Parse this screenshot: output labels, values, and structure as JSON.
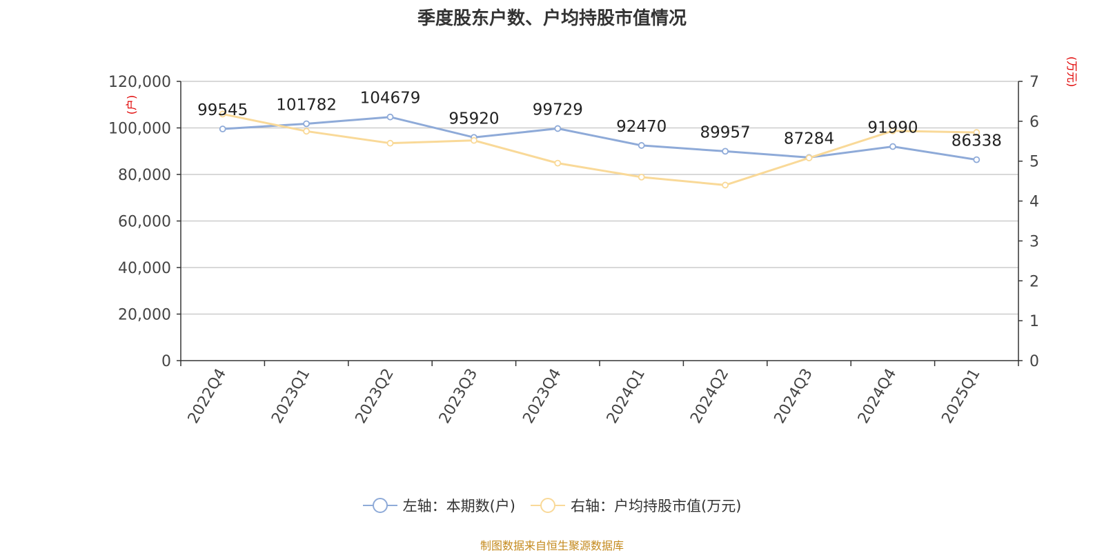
{
  "chart_data": {
    "type": "line",
    "title": "季度股东户数、户均持股市值情况",
    "categories": [
      "2022Q4",
      "2023Q1",
      "2023Q2",
      "2023Q3",
      "2023Q4",
      "2024Q1",
      "2024Q2",
      "2024Q3",
      "2024Q4",
      "2025Q1"
    ],
    "series": [
      {
        "name": "左轴：本期数(户)",
        "axis": "left",
        "color": "#8eaad8",
        "values": [
          99545,
          101782,
          104679,
          95920,
          99729,
          92470,
          89957,
          87284,
          91990,
          86338
        ],
        "labels": [
          "99545",
          "101782",
          "104679",
          "95920",
          "99729",
          "92470",
          "89957",
          "87284",
          "91990",
          "86338"
        ]
      },
      {
        "name": "右轴：户均持股市值(万元)",
        "axis": "right",
        "color": "#f9d998",
        "values": [
          6.18,
          5.75,
          5.45,
          5.52,
          4.95,
          4.6,
          4.4,
          5.08,
          5.76,
          5.72
        ]
      }
    ],
    "left_axis": {
      "unit": "(户)",
      "ylim": [
        0,
        120000
      ],
      "ticks": [
        0,
        20000,
        40000,
        60000,
        80000,
        100000,
        120000
      ],
      "tick_labels": [
        "0",
        "20,000",
        "40,000",
        "60,000",
        "80,000",
        "100,000",
        "120,000"
      ]
    },
    "right_axis": {
      "unit": "(万元)",
      "ylim": [
        0,
        7
      ],
      "ticks": [
        0,
        1,
        2,
        3,
        4,
        5,
        6,
        7
      ],
      "tick_labels": [
        "0",
        "1",
        "2",
        "3",
        "4",
        "5",
        "6",
        "7"
      ]
    },
    "grid": true,
    "legend_position": "bottom"
  },
  "source_note": "制图数据来自恒生聚源数据库"
}
